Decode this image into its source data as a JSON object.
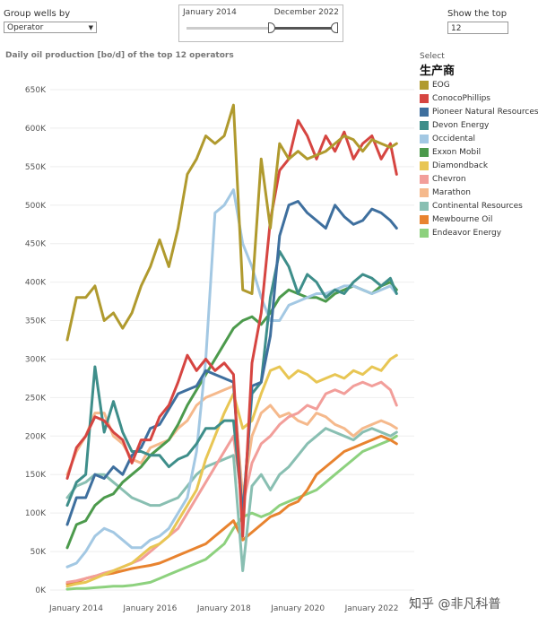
{
  "controls": {
    "group_label": "Group wells by",
    "group_value": "Operator",
    "range_from": "January 2014",
    "range_to": "December 2022",
    "topn_label": "Show the top",
    "topn_value": "12"
  },
  "legend": {
    "select_label": "Select",
    "title": "生产商"
  },
  "watermark": "知乎 @非凡科普",
  "chart_data": {
    "type": "line",
    "title": "Daily oil production [bo/d] of the top 12 operators",
    "x_start": "2014-01",
    "x_tick_labels": [
      "January 2014",
      "January 2016",
      "January 2018",
      "January 2020",
      "January 2022"
    ],
    "x_tick_dates": [
      "2014-01",
      "2016-01",
      "2018-01",
      "2020-01",
      "2022-01"
    ],
    "ylim": [
      0,
      650000
    ],
    "y_ticks": [
      0,
      50000,
      100000,
      150000,
      200000,
      250000,
      300000,
      350000,
      400000,
      450000,
      500000,
      550000,
      600000,
      650000
    ],
    "y_tick_labels": [
      "0K",
      "50K",
      "100K",
      "150K",
      "200K",
      "250K",
      "300K",
      "350K",
      "400K",
      "450K",
      "500K",
      "550K",
      "600K",
      "650K"
    ],
    "series": [
      {
        "name": "EOG",
        "color": "#b09a2e",
        "x": [
          0,
          3,
          6,
          9,
          12,
          15,
          18,
          21,
          24,
          27,
          30,
          33,
          36,
          39,
          42,
          45,
          48,
          51,
          54,
          57,
          60,
          63,
          66,
          69,
          72,
          75,
          78,
          81,
          84,
          87,
          90,
          93,
          96,
          99,
          102,
          105,
          107
        ],
        "values": [
          325,
          380,
          380,
          395,
          350,
          360,
          340,
          360,
          395,
          420,
          455,
          420,
          470,
          540,
          560,
          590,
          580,
          590,
          630,
          390,
          385,
          560,
          470,
          580,
          560,
          570,
          560,
          565,
          570,
          580,
          590,
          585,
          570,
          585,
          580,
          575,
          580
        ]
      },
      {
        "name": "ConocoPhillips",
        "color": "#d64541",
        "x": [
          0,
          3,
          6,
          9,
          12,
          15,
          18,
          21,
          24,
          27,
          30,
          33,
          36,
          39,
          42,
          45,
          48,
          51,
          54,
          57,
          60,
          63,
          66,
          69,
          72,
          75,
          78,
          81,
          84,
          87,
          90,
          93,
          96,
          99,
          102,
          105,
          107
        ],
        "values": [
          145,
          185,
          200,
          225,
          220,
          205,
          195,
          165,
          195,
          195,
          225,
          240,
          270,
          305,
          285,
          300,
          285,
          295,
          280,
          70,
          295,
          360,
          480,
          545,
          560,
          610,
          590,
          560,
          590,
          570,
          595,
          560,
          580,
          590,
          560,
          580,
          540
        ]
      },
      {
        "name": "Pioneer Natural Resources",
        "color": "#3e6f9e",
        "x": [
          0,
          3,
          6,
          9,
          12,
          15,
          18,
          21,
          24,
          27,
          30,
          33,
          36,
          39,
          42,
          45,
          48,
          51,
          54,
          57,
          60,
          63,
          66,
          69,
          72,
          75,
          78,
          81,
          84,
          87,
          90,
          93,
          96,
          99,
          102,
          105,
          107
        ],
        "values": [
          85,
          120,
          120,
          150,
          145,
          160,
          150,
          175,
          185,
          210,
          215,
          235,
          255,
          260,
          265,
          285,
          280,
          275,
          270,
          90,
          265,
          270,
          330,
          460,
          500,
          505,
          490,
          480,
          470,
          500,
          485,
          475,
          480,
          495,
          490,
          480,
          470
        ]
      },
      {
        "name": "Devon Energy",
        "color": "#3e8e8a",
        "x": [
          0,
          3,
          6,
          9,
          12,
          15,
          18,
          21,
          24,
          27,
          30,
          33,
          36,
          39,
          42,
          45,
          48,
          51,
          54,
          57,
          60,
          63,
          66,
          69,
          72,
          75,
          78,
          81,
          84,
          87,
          90,
          93,
          96,
          99,
          102,
          105,
          107
        ],
        "values": [
          110,
          140,
          150,
          290,
          205,
          245,
          205,
          180,
          180,
          175,
          175,
          160,
          170,
          175,
          190,
          210,
          210,
          220,
          220,
          100,
          255,
          270,
          380,
          440,
          420,
          385,
          410,
          400,
          380,
          390,
          385,
          400,
          410,
          405,
          395,
          405,
          385
        ]
      },
      {
        "name": "Occidental",
        "color": "#a3c8e3",
        "x": [
          0,
          3,
          6,
          9,
          12,
          15,
          18,
          21,
          24,
          27,
          30,
          33,
          36,
          39,
          42,
          45,
          48,
          51,
          54,
          57,
          60,
          63,
          66,
          69,
          72,
          75,
          78,
          81,
          84,
          87,
          90,
          93,
          96,
          99,
          102,
          105,
          107
        ],
        "values": [
          30,
          35,
          50,
          70,
          80,
          75,
          65,
          55,
          55,
          65,
          70,
          80,
          100,
          120,
          180,
          300,
          490,
          500,
          520,
          450,
          420,
          380,
          350,
          350,
          370,
          375,
          380,
          385,
          385,
          390,
          395,
          395,
          390,
          385,
          390,
          395,
          385
        ]
      },
      {
        "name": "Exxon Mobil",
        "color": "#4c9a4c",
        "x": [
          0,
          3,
          6,
          9,
          12,
          15,
          18,
          21,
          24,
          27,
          30,
          33,
          36,
          39,
          42,
          45,
          48,
          51,
          54,
          57,
          60,
          63,
          66,
          69,
          72,
          75,
          78,
          81,
          84,
          87,
          90,
          93,
          96,
          99,
          102,
          105,
          107
        ],
        "values": [
          55,
          85,
          90,
          110,
          120,
          125,
          140,
          150,
          160,
          175,
          185,
          195,
          215,
          240,
          260,
          280,
          300,
          320,
          340,
          350,
          355,
          345,
          360,
          380,
          390,
          385,
          380,
          380,
          375,
          385,
          390,
          395,
          390,
          385,
          395,
          400,
          390
        ]
      },
      {
        "name": "Diamondback",
        "color": "#e8c654",
        "x": [
          0,
          3,
          6,
          9,
          12,
          15,
          18,
          21,
          24,
          27,
          30,
          33,
          36,
          39,
          42,
          45,
          48,
          51,
          54,
          57,
          60,
          63,
          66,
          69,
          72,
          75,
          78,
          81,
          84,
          87,
          90,
          93,
          96,
          99,
          102,
          105,
          107
        ],
        "values": [
          5,
          8,
          10,
          15,
          20,
          25,
          30,
          35,
          45,
          55,
          60,
          70,
          90,
          110,
          130,
          170,
          200,
          230,
          255,
          210,
          220,
          255,
          285,
          290,
          275,
          285,
          280,
          270,
          275,
          280,
          275,
          285,
          280,
          290,
          285,
          300,
          305
        ]
      },
      {
        "name": "Chevron",
        "color": "#f29e9a",
        "x": [
          0,
          3,
          6,
          9,
          12,
          15,
          18,
          21,
          24,
          27,
          30,
          33,
          36,
          39,
          42,
          45,
          48,
          51,
          54,
          57,
          60,
          63,
          66,
          69,
          72,
          75,
          78,
          81,
          84,
          87,
          90,
          93,
          96,
          99,
          102,
          105,
          107
        ],
        "values": [
          10,
          12,
          15,
          18,
          22,
          25,
          30,
          35,
          40,
          50,
          60,
          70,
          80,
          100,
          120,
          140,
          160,
          180,
          200,
          110,
          165,
          190,
          200,
          215,
          225,
          230,
          240,
          235,
          255,
          260,
          255,
          265,
          270,
          265,
          270,
          260,
          240
        ]
      },
      {
        "name": "Marathon",
        "color": "#f5b98c",
        "x": [
          0,
          3,
          6,
          9,
          12,
          15,
          18,
          21,
          24,
          27,
          30,
          33,
          36,
          39,
          42,
          45,
          48,
          51,
          54,
          57,
          60,
          63,
          66,
          69,
          72,
          75,
          78,
          81,
          84,
          87,
          90,
          93,
          96,
          99,
          102,
          105,
          107
        ],
        "values": [
          150,
          180,
          200,
          230,
          230,
          200,
          190,
          170,
          165,
          185,
          190,
          195,
          210,
          220,
          240,
          250,
          255,
          260,
          265,
          120,
          200,
          230,
          240,
          225,
          230,
          220,
          215,
          230,
          225,
          215,
          210,
          200,
          210,
          215,
          220,
          215,
          210
        ]
      },
      {
        "name": "Continental Resources",
        "color": "#89bfb2",
        "x": [
          0,
          3,
          6,
          9,
          12,
          15,
          18,
          21,
          24,
          27,
          30,
          33,
          36,
          39,
          42,
          45,
          48,
          51,
          54,
          57,
          60,
          63,
          66,
          69,
          72,
          75,
          78,
          81,
          84,
          87,
          90,
          93,
          96,
          99,
          102,
          105,
          107
        ],
        "values": [
          120,
          135,
          140,
          150,
          150,
          140,
          130,
          120,
          115,
          110,
          110,
          115,
          120,
          135,
          150,
          160,
          165,
          170,
          175,
          25,
          135,
          150,
          130,
          150,
          160,
          175,
          190,
          200,
          210,
          205,
          200,
          195,
          205,
          210,
          205,
          200,
          205
        ]
      },
      {
        "name": "Mewbourne Oil",
        "color": "#e8832f",
        "x": [
          0,
          3,
          6,
          9,
          12,
          15,
          18,
          21,
          24,
          27,
          30,
          33,
          36,
          39,
          42,
          45,
          48,
          51,
          54,
          57,
          60,
          63,
          66,
          69,
          72,
          75,
          78,
          81,
          84,
          87,
          90,
          93,
          96,
          99,
          102,
          105,
          107
        ],
        "values": [
          8,
          10,
          15,
          18,
          20,
          22,
          25,
          28,
          30,
          32,
          35,
          40,
          45,
          50,
          55,
          60,
          70,
          80,
          90,
          65,
          75,
          85,
          95,
          100,
          110,
          115,
          130,
          150,
          160,
          170,
          180,
          185,
          190,
          195,
          200,
          195,
          190
        ]
      },
      {
        "name": "Endeavor Energy",
        "color": "#8dd17e",
        "x": [
          0,
          3,
          6,
          9,
          12,
          15,
          18,
          21,
          24,
          27,
          30,
          33,
          36,
          39,
          42,
          45,
          48,
          51,
          54,
          57,
          60,
          63,
          66,
          69,
          72,
          75,
          78,
          81,
          84,
          87,
          90,
          93,
          96,
          99,
          102,
          105,
          107
        ],
        "values": [
          1,
          2,
          2,
          3,
          4,
          5,
          5,
          6,
          8,
          10,
          15,
          20,
          25,
          30,
          35,
          40,
          50,
          60,
          80,
          95,
          100,
          95,
          100,
          110,
          115,
          120,
          125,
          130,
          140,
          150,
          160,
          170,
          180,
          185,
          190,
          195,
          200
        ]
      }
    ],
    "value_unit_multiplier": 1000
  }
}
